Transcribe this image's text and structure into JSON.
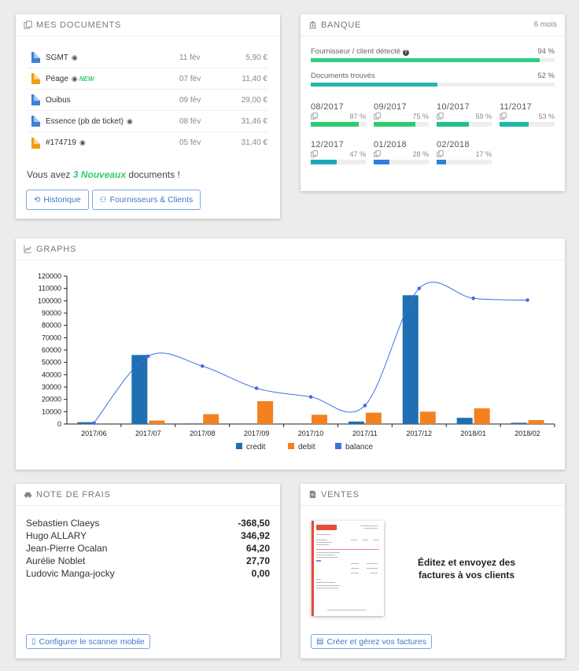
{
  "documents": {
    "title": "MES DOCUMENTS",
    "items": [
      {
        "name": "SGMT",
        "date": "11 fév",
        "amount": "5,90 €",
        "color": "#3b82d6",
        "camera": true,
        "new": false
      },
      {
        "name": "Péage",
        "date": "07 fév",
        "amount": "11,40 €",
        "color": "#f39c12",
        "camera": true,
        "new": true,
        "new_label": "NEW"
      },
      {
        "name": "Ouibus",
        "date": "09 fév",
        "amount": "29,00 €",
        "color": "#3b82d6",
        "camera": false,
        "new": false
      },
      {
        "name": "Essence (pb de ticket)",
        "date": "08 fév",
        "amount": "31,46 €",
        "color": "#3b82d6",
        "camera": true,
        "new": false
      },
      {
        "name": "#174719",
        "date": "05 fév",
        "amount": "31,40 €",
        "color": "#f39c12",
        "camera": true,
        "new": false
      }
    ],
    "message_prefix": "Vous avez ",
    "message_highlight": "3 Nouveaux",
    "message_suffix": " documents !",
    "history_button": "Historique",
    "suppliers_button": "Fournisseurs & Clients"
  },
  "bank": {
    "title": "BANQUE",
    "period": "6 mois",
    "detected_label": "Fournisseur / client détecté",
    "detected_pct": 94,
    "detected_pct_label": "94 %",
    "found_label": "Documents trouvés",
    "found_pct": 52,
    "found_pct_label": "52 %",
    "months": [
      {
        "label": "08/2017",
        "pct": 87,
        "pct_label": "87 %",
        "color": "#2ecc71"
      },
      {
        "label": "09/2017",
        "pct": 75,
        "pct_label": "75 %",
        "color": "#2ecc71"
      },
      {
        "label": "10/2017",
        "pct": 59,
        "pct_label": "59 %",
        "color": "#1fbf8f"
      },
      {
        "label": "11/2017",
        "pct": 53,
        "pct_label": "53 %",
        "color": "#1fb8a8"
      },
      {
        "label": "12/2017",
        "pct": 47,
        "pct_label": "47 %",
        "color": "#20a8b8"
      },
      {
        "label": "01/2018",
        "pct": 28,
        "pct_label": "28 %",
        "color": "#2f7fd8"
      },
      {
        "label": "02/2018",
        "pct": 17,
        "pct_label": "17 %",
        "color": "#2f7fd8"
      }
    ],
    "colors": {
      "detected": "#2ecc80",
      "found": "#26b5b0"
    }
  },
  "graphs": {
    "title": "GRAPHS"
  },
  "chart_data": {
    "type": "bar",
    "categories": [
      "2017/06",
      "2017/07",
      "2017/08",
      "2017/09",
      "2017/10",
      "2017/11",
      "2017/12",
      "2018/01",
      "2018/02"
    ],
    "series": [
      {
        "name": "credit",
        "type": "bar",
        "color": "#1f6fb2",
        "values": [
          1500,
          56000,
          500,
          0,
          0,
          2000,
          104500,
          5000,
          1000
        ]
      },
      {
        "name": "debit",
        "type": "bar",
        "color": "#f48120",
        "values": [
          0,
          2800,
          8000,
          18500,
          7500,
          9200,
          10000,
          12700,
          3200
        ]
      },
      {
        "name": "balance",
        "type": "line",
        "color": "#3f6fe0",
        "values": [
          800,
          55000,
          47000,
          29000,
          22000,
          15000,
          110000,
          102000,
          100500
        ]
      }
    ],
    "ylim": [
      0,
      120000
    ],
    "yticks": [
      0,
      10000,
      20000,
      30000,
      40000,
      50000,
      60000,
      70000,
      80000,
      90000,
      100000,
      110000,
      120000
    ],
    "legend": "bottom-center"
  },
  "notes": {
    "title": "NOTE DE FRAIS",
    "rows": [
      {
        "name": "Sebastien Claeys",
        "value": "-368,50"
      },
      {
        "name": "Hugo ALLARY",
        "value": "346,92"
      },
      {
        "name": "Jean-Pierre Ocalan",
        "value": "64,20"
      },
      {
        "name": "Aurélie Noblet",
        "value": "27,70"
      },
      {
        "name": "Ludovic Manga-jocky",
        "value": "0,00"
      }
    ],
    "button": "Configurer le scanner mobile"
  },
  "ventes": {
    "title": "VENTES",
    "text": "Éditez et envoyez des factures à vos clients",
    "button": "Créer et gérez vos factures"
  }
}
